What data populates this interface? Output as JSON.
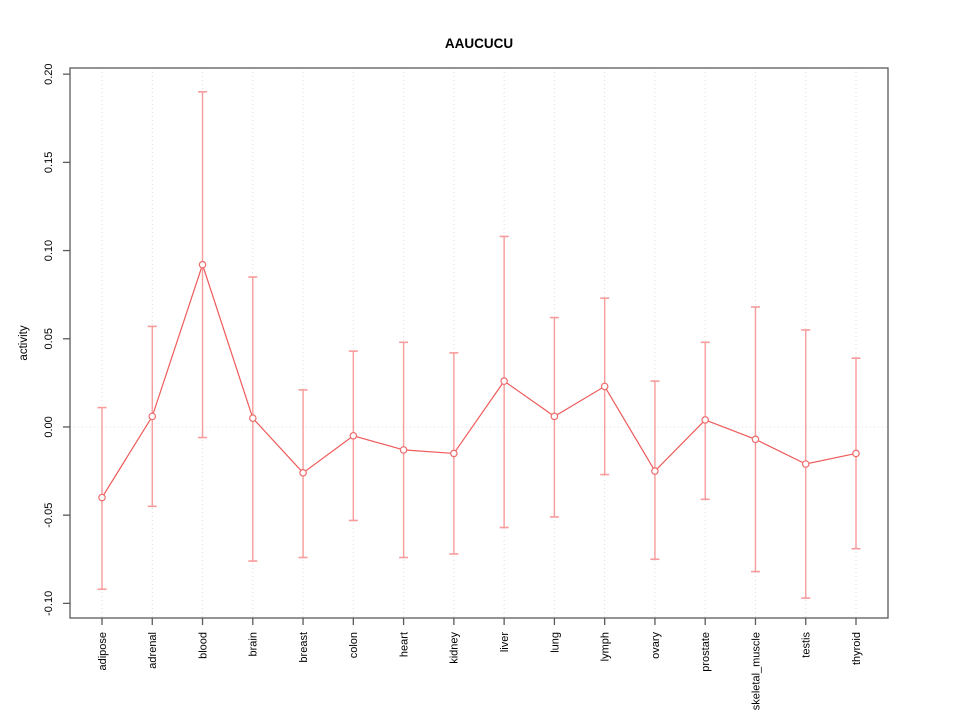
{
  "chart_data": {
    "type": "line",
    "title": "AAUCUCU",
    "ylabel": "activity",
    "xlabel": "",
    "categories": [
      "adipose",
      "adrenal",
      "blood",
      "brain",
      "breast",
      "colon",
      "heart",
      "kidney",
      "liver",
      "lung",
      "lymph",
      "ovary",
      "prostate",
      "skeletal_muscle",
      "testis",
      "thyroid"
    ],
    "series": [
      {
        "name": "activity",
        "means": [
          -0.04,
          0.006,
          0.092,
          0.005,
          -0.026,
          -0.005,
          -0.013,
          -0.015,
          0.026,
          0.006,
          0.023,
          -0.025,
          0.004,
          -0.007,
          -0.021,
          -0.015
        ],
        "upper": [
          0.011,
          0.057,
          0.19,
          0.085,
          0.021,
          0.043,
          0.048,
          0.042,
          0.108,
          0.062,
          0.073,
          0.026,
          0.048,
          0.068,
          0.055,
          0.039
        ],
        "lower": [
          -0.092,
          -0.045,
          -0.006,
          -0.076,
          -0.074,
          -0.053,
          -0.074,
          -0.072,
          -0.057,
          -0.051,
          -0.027,
          -0.075,
          -0.041,
          -0.082,
          -0.097,
          -0.069
        ]
      }
    ],
    "yticks": [
      -0.1,
      -0.05,
      0.0,
      0.05,
      0.1,
      0.15,
      0.2
    ],
    "ytick_labels": [
      "-0.10",
      "-0.05",
      "0.00",
      "0.05",
      "0.10",
      "0.15",
      "0.20"
    ],
    "ylim": [
      -0.1083,
      0.2035
    ],
    "grid": {
      "vertical_per_category": true,
      "zero_line_dotted": true,
      "horizontal_gridlines": false
    },
    "legend": null,
    "marker": "open-circle",
    "colors": {
      "line": "#ef5a5a",
      "error_bar": "#f79b9b",
      "marker": "#ef6b6b",
      "grid": "#dcdcdc",
      "box": "#5a5a5a",
      "text": "#000000",
      "background": "#ffffff"
    }
  }
}
